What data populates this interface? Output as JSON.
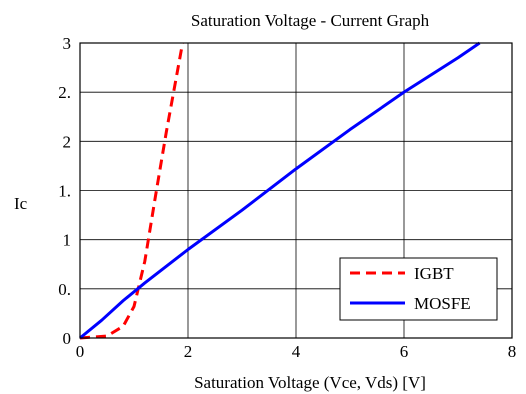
{
  "chart_data": {
    "type": "line",
    "title": "Saturation Voltage - Current Graph",
    "xlabel": "Saturation Voltage (Vce, Vds) [V]",
    "ylabel": "Ic",
    "xlim": [
      0,
      8
    ],
    "ylim": [
      0,
      3
    ],
    "grid": true,
    "legend_position": "bottom-right",
    "x_ticks": [
      0,
      2,
      4,
      6,
      8
    ],
    "x_tick_labels": [
      "0",
      "2",
      "4",
      "6",
      "8"
    ],
    "y_ticks": [
      0,
      0.5,
      1,
      1.5,
      2,
      2.5,
      3
    ],
    "y_tick_labels": [
      "0",
      "0.",
      "1",
      "1.",
      "2",
      "2.",
      "3"
    ],
    "series": [
      {
        "name": "IGBT",
        "color": "#ff0000",
        "dash": "dashed",
        "x": [
          0,
          0.5,
          0.8,
          1.0,
          1.2,
          1.4,
          1.6,
          1.8,
          1.9
        ],
        "y": [
          0,
          0.02,
          0.12,
          0.32,
          0.78,
          1.45,
          2.1,
          2.7,
          3.0
        ]
      },
      {
        "name": "MOSFE",
        "color": "#0000ff",
        "dash": "solid",
        "x": [
          0,
          0.4,
          0.8,
          1.2,
          2.0,
          3.0,
          4.0,
          5.0,
          6.0,
          7.0,
          7.4
        ],
        "y": [
          0,
          0.18,
          0.38,
          0.56,
          0.9,
          1.3,
          1.72,
          2.12,
          2.5,
          2.85,
          3.0
        ]
      }
    ]
  }
}
